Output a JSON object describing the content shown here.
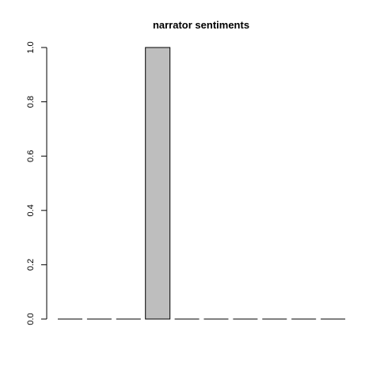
{
  "chart_data": {
    "type": "bar",
    "title": "narrator sentiments",
    "xlabel": "",
    "ylabel": "",
    "ylim": [
      0,
      1
    ],
    "y_ticks": [
      "0.0",
      "0.2",
      "0.4",
      "0.6",
      "0.8",
      "1.0"
    ],
    "categories": [
      "",
      "",
      "",
      "",
      "",
      "",
      "",
      "",
      "",
      ""
    ],
    "values": [
      0,
      0,
      0,
      1,
      0,
      0,
      0,
      0,
      0,
      0
    ],
    "bar_color": "#bebebe",
    "bar_border_color": "#000000",
    "grid": false,
    "legend": "none"
  }
}
